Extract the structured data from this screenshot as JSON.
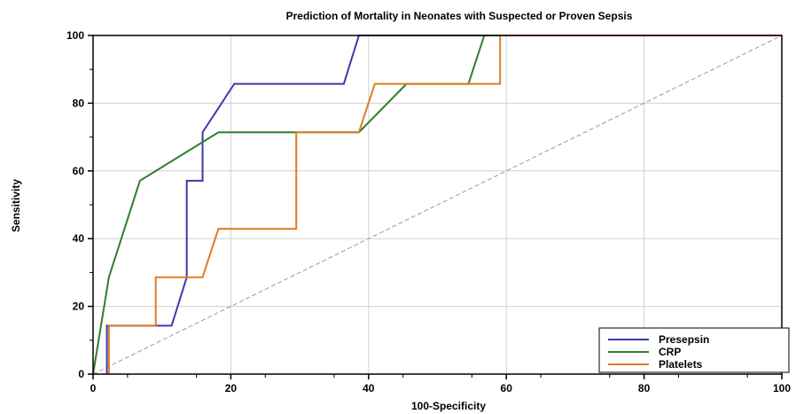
{
  "chart_data": {
    "type": "line",
    "title": "Prediction of Mortality in Neonates with Suspected or Proven Sepsis",
    "xlabel": "100-Specificity",
    "ylabel": "Sensitivity",
    "xlim": [
      0,
      100
    ],
    "ylim": [
      0,
      100
    ],
    "xticks": [
      "0",
      "20",
      "40",
      "60",
      "80",
      "100"
    ],
    "yticks": [
      "0",
      "20",
      "40",
      "60",
      "80",
      "100"
    ],
    "grid": true,
    "legend_position": "bottom-right",
    "series": [
      {
        "name": "Presepsin",
        "color": "#3a3aa8",
        "points": [
          [
            2,
            0
          ],
          [
            2,
            14.3
          ],
          [
            11.4,
            14.3
          ],
          [
            13.6,
            28.6
          ],
          [
            13.6,
            57.1
          ],
          [
            15.9,
            57.1
          ],
          [
            15.9,
            71.4
          ],
          [
            20.5,
            85.7
          ],
          [
            36.4,
            85.7
          ],
          [
            38.6,
            100
          ],
          [
            100,
            100
          ]
        ]
      },
      {
        "name": "CRP",
        "color": "#2e7d2e",
        "points": [
          [
            0,
            0
          ],
          [
            2.3,
            28.6
          ],
          [
            6.8,
            57.1
          ],
          [
            18.2,
            71.4
          ],
          [
            38.6,
            71.4
          ],
          [
            45.5,
            85.7
          ],
          [
            54.5,
            85.7
          ],
          [
            56.8,
            100
          ],
          [
            100,
            100
          ]
        ]
      },
      {
        "name": "Platelets",
        "color": "#e07b22",
        "points": [
          [
            2.3,
            0
          ],
          [
            2.3,
            14.3
          ],
          [
            9.1,
            14.3
          ],
          [
            9.1,
            28.6
          ],
          [
            15.9,
            28.6
          ],
          [
            18.2,
            42.9
          ],
          [
            29.5,
            42.9
          ],
          [
            29.5,
            71.4
          ],
          [
            38.6,
            71.4
          ],
          [
            40.9,
            85.7
          ],
          [
            59.1,
            85.7
          ],
          [
            59.1,
            100
          ],
          [
            100,
            100
          ]
        ]
      }
    ],
    "reference_line": {
      "color": "#999999",
      "points": [
        [
          0,
          0
        ],
        [
          100,
          100
        ]
      ]
    }
  }
}
